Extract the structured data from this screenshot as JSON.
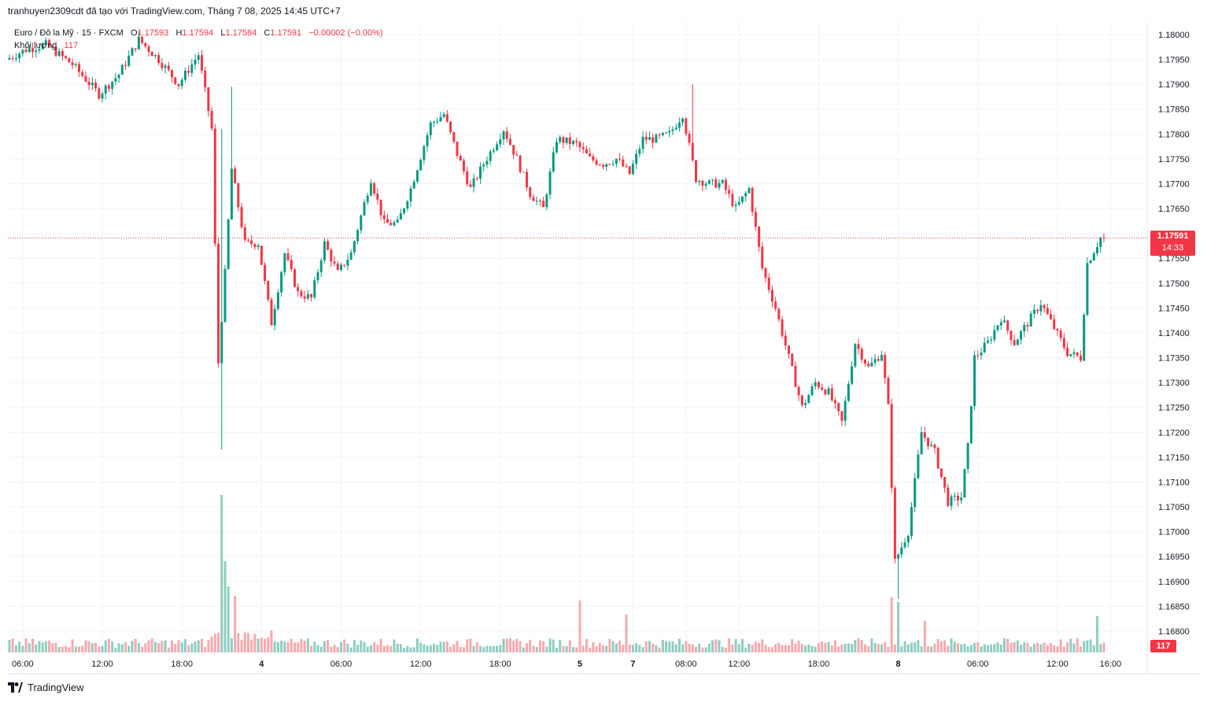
{
  "header": {
    "attribution": "tranhuyen2309cdt đã tạo với TradingView.com, Tháng 7 08, 2025 14:45 UTC+7"
  },
  "legend": {
    "symbol": "Euro / Đô la Mỹ · 15 · FXCM",
    "open_label": "O",
    "open": "1.17593",
    "high_label": "H",
    "high": "1.17594",
    "low_label": "L",
    "low": "1.17584",
    "close_label": "C",
    "close": "1.17591",
    "change": "−0.00002 (−0.00%)",
    "volume_label": "Khối lượng",
    "volume": "117"
  },
  "price_tag": {
    "price": "1.17591",
    "countdown": "14:33"
  },
  "volume_tag": "117",
  "footer": {
    "brand": "TradingView"
  },
  "colors": {
    "up": "#089981",
    "down": "#f23645",
    "up_volume": "#8fcdc1",
    "down_volume": "#f7a9ae",
    "grid": "#f0f3fa"
  },
  "chart_data": {
    "type": "candlestick",
    "symbol": "EURUSD",
    "timeframe": "15",
    "y_ticks": [
      "1.18000",
      "1.17950",
      "1.17900",
      "1.17850",
      "1.17800",
      "1.17750",
      "1.17700",
      "1.17650",
      "1.17600",
      "1.17550",
      "1.17500",
      "1.17450",
      "1.17400",
      "1.17350",
      "1.17300",
      "1.17250",
      "1.17200",
      "1.17150",
      "1.17100",
      "1.17050",
      "1.17000",
      "1.16950",
      "1.16900",
      "1.16850",
      "1.16800"
    ],
    "ylim": [
      1.1678,
      1.1802
    ],
    "x_labels": [
      {
        "label": "06:00",
        "t": 4
      },
      {
        "label": "12:00",
        "t": 28
      },
      {
        "label": "18:00",
        "t": 52
      },
      {
        "label": "4",
        "t": 76
      },
      {
        "label": "06:00",
        "t": 100
      },
      {
        "label": "12:00",
        "t": 124
      },
      {
        "label": "18:00",
        "t": 148
      },
      {
        "label": "5",
        "t": 172
      },
      {
        "label": "7",
        "t": 188
      },
      {
        "label": "08:00",
        "t": 204
      },
      {
        "label": "12:00",
        "t": 220
      },
      {
        "label": "18:00",
        "t": 244
      },
      {
        "label": "8",
        "t": 268
      },
      {
        "label": "06:00",
        "t": 292
      },
      {
        "label": "12:00",
        "t": 316
      },
      {
        "label": "16:00",
        "t": 332
      }
    ],
    "last_price": 1.17591,
    "candle_count": 331,
    "anchors": [
      {
        "t": 0,
        "p": 1.1795
      },
      {
        "t": 6,
        "p": 1.1797
      },
      {
        "t": 12,
        "p": 1.1798
      },
      {
        "t": 20,
        "p": 1.1794
      },
      {
        "t": 28,
        "p": 1.1788
      },
      {
        "t": 34,
        "p": 1.1792
      },
      {
        "t": 40,
        "p": 1.1799
      },
      {
        "t": 46,
        "p": 1.1795
      },
      {
        "t": 52,
        "p": 1.179
      },
      {
        "t": 58,
        "p": 1.1796
      },
      {
        "t": 62,
        "p": 1.1781
      },
      {
        "t": 64,
        "p": 1.1734
      },
      {
        "t": 66,
        "p": 1.1752
      },
      {
        "t": 68,
        "p": 1.1773
      },
      {
        "t": 72,
        "p": 1.1758
      },
      {
        "t": 76,
        "p": 1.1758
      },
      {
        "t": 80,
        "p": 1.1742
      },
      {
        "t": 84,
        "p": 1.1756
      },
      {
        "t": 88,
        "p": 1.1748
      },
      {
        "t": 92,
        "p": 1.1747
      },
      {
        "t": 96,
        "p": 1.1758
      },
      {
        "t": 100,
        "p": 1.1752
      },
      {
        "t": 104,
        "p": 1.1756
      },
      {
        "t": 110,
        "p": 1.1771
      },
      {
        "t": 114,
        "p": 1.1762
      },
      {
        "t": 118,
        "p": 1.1762
      },
      {
        "t": 122,
        "p": 1.1769
      },
      {
        "t": 128,
        "p": 1.1782
      },
      {
        "t": 132,
        "p": 1.1784
      },
      {
        "t": 136,
        "p": 1.1776
      },
      {
        "t": 140,
        "p": 1.1769
      },
      {
        "t": 144,
        "p": 1.1774
      },
      {
        "t": 150,
        "p": 1.1781
      },
      {
        "t": 154,
        "p": 1.1775
      },
      {
        "t": 158,
        "p": 1.1768
      },
      {
        "t": 162,
        "p": 1.1765
      },
      {
        "t": 166,
        "p": 1.1779
      },
      {
        "t": 172,
        "p": 1.1778
      },
      {
        "t": 176,
        "p": 1.1775
      },
      {
        "t": 180,
        "p": 1.1774
      },
      {
        "t": 184,
        "p": 1.1775
      },
      {
        "t": 188,
        "p": 1.1772
      },
      {
        "t": 192,
        "p": 1.1779
      },
      {
        "t": 196,
        "p": 1.1779
      },
      {
        "t": 200,
        "p": 1.178
      },
      {
        "t": 204,
        "p": 1.1784
      },
      {
        "t": 208,
        "p": 1.1771
      },
      {
        "t": 212,
        "p": 1.177
      },
      {
        "t": 216,
        "p": 1.177
      },
      {
        "t": 220,
        "p": 1.1765
      },
      {
        "t": 224,
        "p": 1.1769
      },
      {
        "t": 228,
        "p": 1.1753
      },
      {
        "t": 232,
        "p": 1.1745
      },
      {
        "t": 236,
        "p": 1.1735
      },
      {
        "t": 240,
        "p": 1.1725
      },
      {
        "t": 244,
        "p": 1.173
      },
      {
        "t": 248,
        "p": 1.1728
      },
      {
        "t": 252,
        "p": 1.1722
      },
      {
        "t": 256,
        "p": 1.1738
      },
      {
        "t": 260,
        "p": 1.1733
      },
      {
        "t": 264,
        "p": 1.1736
      },
      {
        "t": 266,
        "p": 1.1725
      },
      {
        "t": 268,
        "p": 1.1694
      },
      {
        "t": 272,
        "p": 1.17
      },
      {
        "t": 276,
        "p": 1.172
      },
      {
        "t": 280,
        "p": 1.1716
      },
      {
        "t": 284,
        "p": 1.1706
      },
      {
        "t": 288,
        "p": 1.1707
      },
      {
        "t": 290,
        "p": 1.1717
      },
      {
        "t": 292,
        "p": 1.1735
      },
      {
        "t": 296,
        "p": 1.1738
      },
      {
        "t": 300,
        "p": 1.1743
      },
      {
        "t": 304,
        "p": 1.1738
      },
      {
        "t": 308,
        "p": 1.1742
      },
      {
        "t": 312,
        "p": 1.1746
      },
      {
        "t": 316,
        "p": 1.1741
      },
      {
        "t": 320,
        "p": 1.1736
      },
      {
        "t": 324,
        "p": 1.1735
      },
      {
        "t": 326,
        "p": 1.1754
      },
      {
        "t": 330,
        "p": 1.17591
      }
    ],
    "volume_spikes": [
      {
        "t": 64,
        "v": 1.0
      },
      {
        "t": 65,
        "v": 0.58
      },
      {
        "t": 66,
        "v": 0.42
      },
      {
        "t": 68,
        "v": 0.36
      },
      {
        "t": 172,
        "v": 0.33
      },
      {
        "t": 186,
        "v": 0.24
      },
      {
        "t": 266,
        "v": 0.35
      },
      {
        "t": 268,
        "v": 0.32
      },
      {
        "t": 276,
        "v": 0.2
      },
      {
        "t": 328,
        "v": 0.23
      }
    ]
  }
}
